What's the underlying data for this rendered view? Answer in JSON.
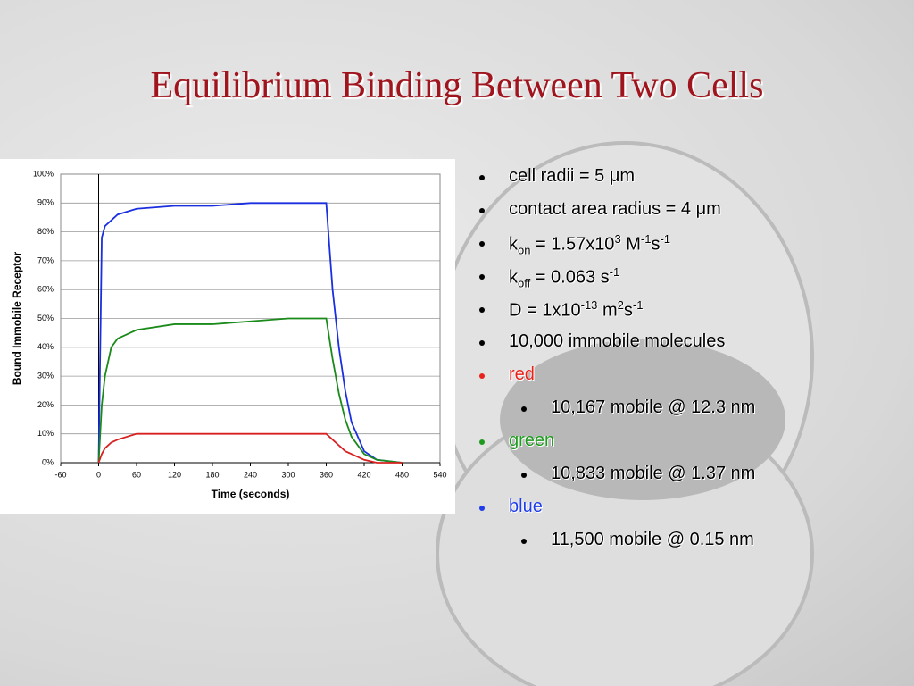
{
  "title": "Equilibrium Binding Between Two Cells",
  "bullets": [
    {
      "level": 1,
      "parts": [
        {
          "text": "cell radii = 5 μm"
        }
      ]
    },
    {
      "level": 1,
      "parts": [
        {
          "text": "contact area radius = 4 μm"
        }
      ]
    },
    {
      "level": 1,
      "parts": [
        {
          "text": "k"
        },
        {
          "text": "on",
          "script": "sub"
        },
        {
          "text": " = 1.57x10"
        },
        {
          "text": "3",
          "script": "sup"
        },
        {
          "text": " M"
        },
        {
          "text": "-1",
          "script": "sup"
        },
        {
          "text": "s"
        },
        {
          "text": "-1",
          "script": "sup"
        }
      ]
    },
    {
      "level": 1,
      "parts": [
        {
          "text": "k"
        },
        {
          "text": "off",
          "script": "sub"
        },
        {
          "text": " = 0.063 s"
        },
        {
          "text": "-1",
          "script": "sup"
        }
      ]
    },
    {
      "level": 1,
      "parts": [
        {
          "text": "D = 1x10"
        },
        {
          "text": "-13",
          "script": "sup"
        },
        {
          "text": " m"
        },
        {
          "text": "2",
          "script": "sup"
        },
        {
          "text": "s"
        },
        {
          "text": "-1",
          "script": "sup"
        }
      ]
    },
    {
      "level": 1,
      "parts": [
        {
          "text": "10,000 immobile molecules"
        }
      ]
    },
    {
      "level": 1,
      "color": "#e8231b",
      "parts": [
        {
          "text": "red"
        }
      ]
    },
    {
      "level": 2,
      "parts": [
        {
          "text": "10,167 mobile @ 12.3 nm"
        }
      ]
    },
    {
      "level": 1,
      "color": "#1e9a1e",
      "parts": [
        {
          "text": "green"
        }
      ]
    },
    {
      "level": 2,
      "parts": [
        {
          "text": "10,833 mobile @ 1.37 nm"
        }
      ]
    },
    {
      "level": 1,
      "color": "#1f3de8",
      "parts": [
        {
          "text": "blue"
        }
      ]
    },
    {
      "level": 2,
      "parts": [
        {
          "text": "11,500 mobile @ 0.15 nm"
        }
      ]
    }
  ],
  "chart_data": {
    "type": "line",
    "xlabel": "Time (seconds)",
    "ylabel": "Bound Immobile Receptor",
    "x": [
      0,
      5,
      10,
      20,
      30,
      60,
      120,
      180,
      240,
      300,
      360,
      365,
      370,
      380,
      390,
      400,
      420,
      440,
      480
    ],
    "series": [
      {
        "color": "#1a2fe0",
        "values": [
          0,
          78,
          82,
          84,
          86,
          88,
          89,
          89,
          90,
          90,
          90,
          75,
          60,
          40,
          25,
          14,
          4,
          1,
          0
        ]
      },
      {
        "color": "#1a8a1a",
        "values": [
          0,
          20,
          30,
          40,
          43,
          46,
          48,
          48,
          49,
          50,
          50,
          43,
          36,
          24,
          15,
          9,
          3,
          1,
          0
        ]
      },
      {
        "color": "#d82020",
        "values": [
          0,
          3,
          5,
          7,
          8,
          10,
          10,
          10,
          10,
          10,
          10,
          9,
          8,
          6,
          4,
          3,
          1,
          0,
          0
        ]
      }
    ],
    "xlim": [
      -60,
      540
    ],
    "xticks": [
      -60,
      0,
      60,
      120,
      180,
      240,
      300,
      360,
      420,
      480,
      540
    ],
    "ylim": [
      0,
      100
    ],
    "yticks": [
      {
        "value": 0,
        "label": "0%"
      },
      {
        "value": 10,
        "label": "10%"
      },
      {
        "value": 20,
        "label": "20%"
      },
      {
        "value": 30,
        "label": "30%"
      },
      {
        "value": 40,
        "label": "40%"
      },
      {
        "value": 50,
        "label": "50%"
      },
      {
        "value": 60,
        "label": "60%"
      },
      {
        "value": 70,
        "label": "70%"
      },
      {
        "value": 80,
        "label": "80%"
      },
      {
        "value": 90,
        "label": "90%"
      },
      {
        "value": 100,
        "label": "100%"
      }
    ],
    "grid": true
  }
}
